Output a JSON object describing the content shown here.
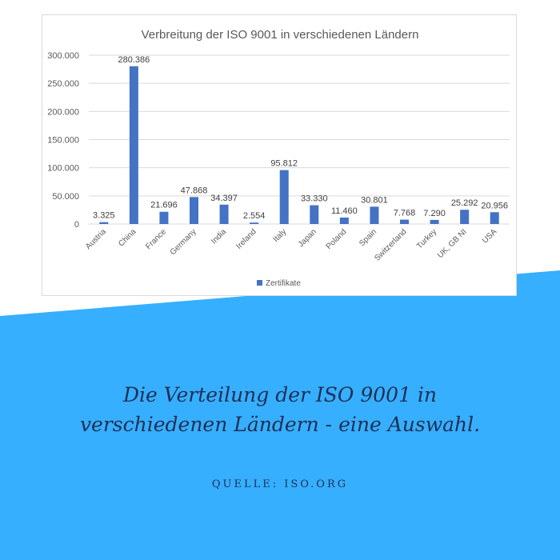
{
  "colors": {
    "accent_band": "#36afff",
    "bar": "#4472c4",
    "caption_text": "#1f2f55"
  },
  "chart_data": {
    "type": "bar",
    "title": "Verbreitung der ISO 9001 in verschiedenen Ländern",
    "categories": [
      "Austria",
      "China",
      "France",
      "Germany",
      "India",
      "Ireland",
      "Italy",
      "Japan",
      "Poland",
      "Spain",
      "Switzerland",
      "Turkey",
      "UK, GB NI",
      "USA"
    ],
    "series": [
      {
        "name": "Zertifikate",
        "values": [
          3325,
          280386,
          21696,
          47868,
          34397,
          2554,
          95812,
          33330,
          11460,
          30801,
          7768,
          7290,
          25292,
          20956
        ],
        "labels": [
          "3.325",
          "280.386",
          "21.696",
          "47.868",
          "34.397",
          "2.554",
          "95.812",
          "33.330",
          "11.460",
          "30.801",
          "7.768",
          "7.290",
          "25.292",
          "20.956"
        ]
      }
    ],
    "ylim": [
      0,
      300000
    ],
    "yticks": [
      0,
      50000,
      100000,
      150000,
      200000,
      250000,
      300000
    ],
    "ytick_labels": [
      "0",
      "50.000",
      "100.000",
      "150.000",
      "200.000",
      "250.000",
      "300.000"
    ],
    "grid": true,
    "legend_position": "bottom"
  },
  "caption": {
    "line1": "Die Verteilung der ISO 9001 in",
    "line2": "verschiedenen Ländern - eine Auswahl."
  },
  "source": "QUELLE: ISO.ORG"
}
